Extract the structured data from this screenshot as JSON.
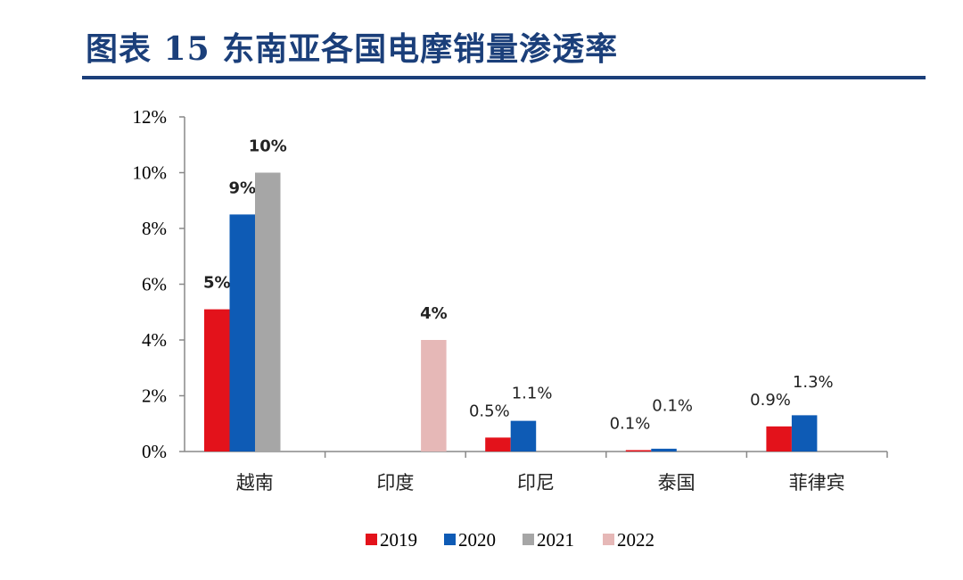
{
  "title": "图表 15  东南亚各国电摩销量渗透率",
  "chart_data": {
    "type": "bar",
    "title": "图表 15  东南亚各国电摩销量渗透率",
    "categories": [
      "越南",
      "印度",
      "印尼",
      "泰国",
      "菲律宾"
    ],
    "series": [
      {
        "name": "2019",
        "color": "#E3121B",
        "values": [
          5.1,
          null,
          0.5,
          0.05,
          0.9
        ],
        "labels": [
          "5%",
          null,
          "0.5%",
          "0.1%",
          "0.9%"
        ]
      },
      {
        "name": "2020",
        "color": "#0E5BB5",
        "values": [
          8.5,
          null,
          1.1,
          0.1,
          1.3
        ],
        "labels": [
          "9%",
          null,
          "1.1%",
          "0.1%",
          "1.3%"
        ]
      },
      {
        "name": "2021",
        "color": "#A6A6A6",
        "values": [
          10.0,
          null,
          null,
          null,
          null
        ],
        "labels": [
          "10%",
          null,
          null,
          null,
          null
        ]
      },
      {
        "name": "2022",
        "color": "#E6B8B7",
        "values": [
          null,
          4.0,
          null,
          null,
          null
        ],
        "labels": [
          null,
          "4%",
          null,
          null,
          null
        ]
      }
    ],
    "ylim": [
      0,
      12
    ],
    "yticks": [
      "0%",
      "2%",
      "4%",
      "6%",
      "8%",
      "10%",
      "12%"
    ],
    "xlabel": "",
    "ylabel": "",
    "grid": false,
    "legend": "bottom"
  }
}
